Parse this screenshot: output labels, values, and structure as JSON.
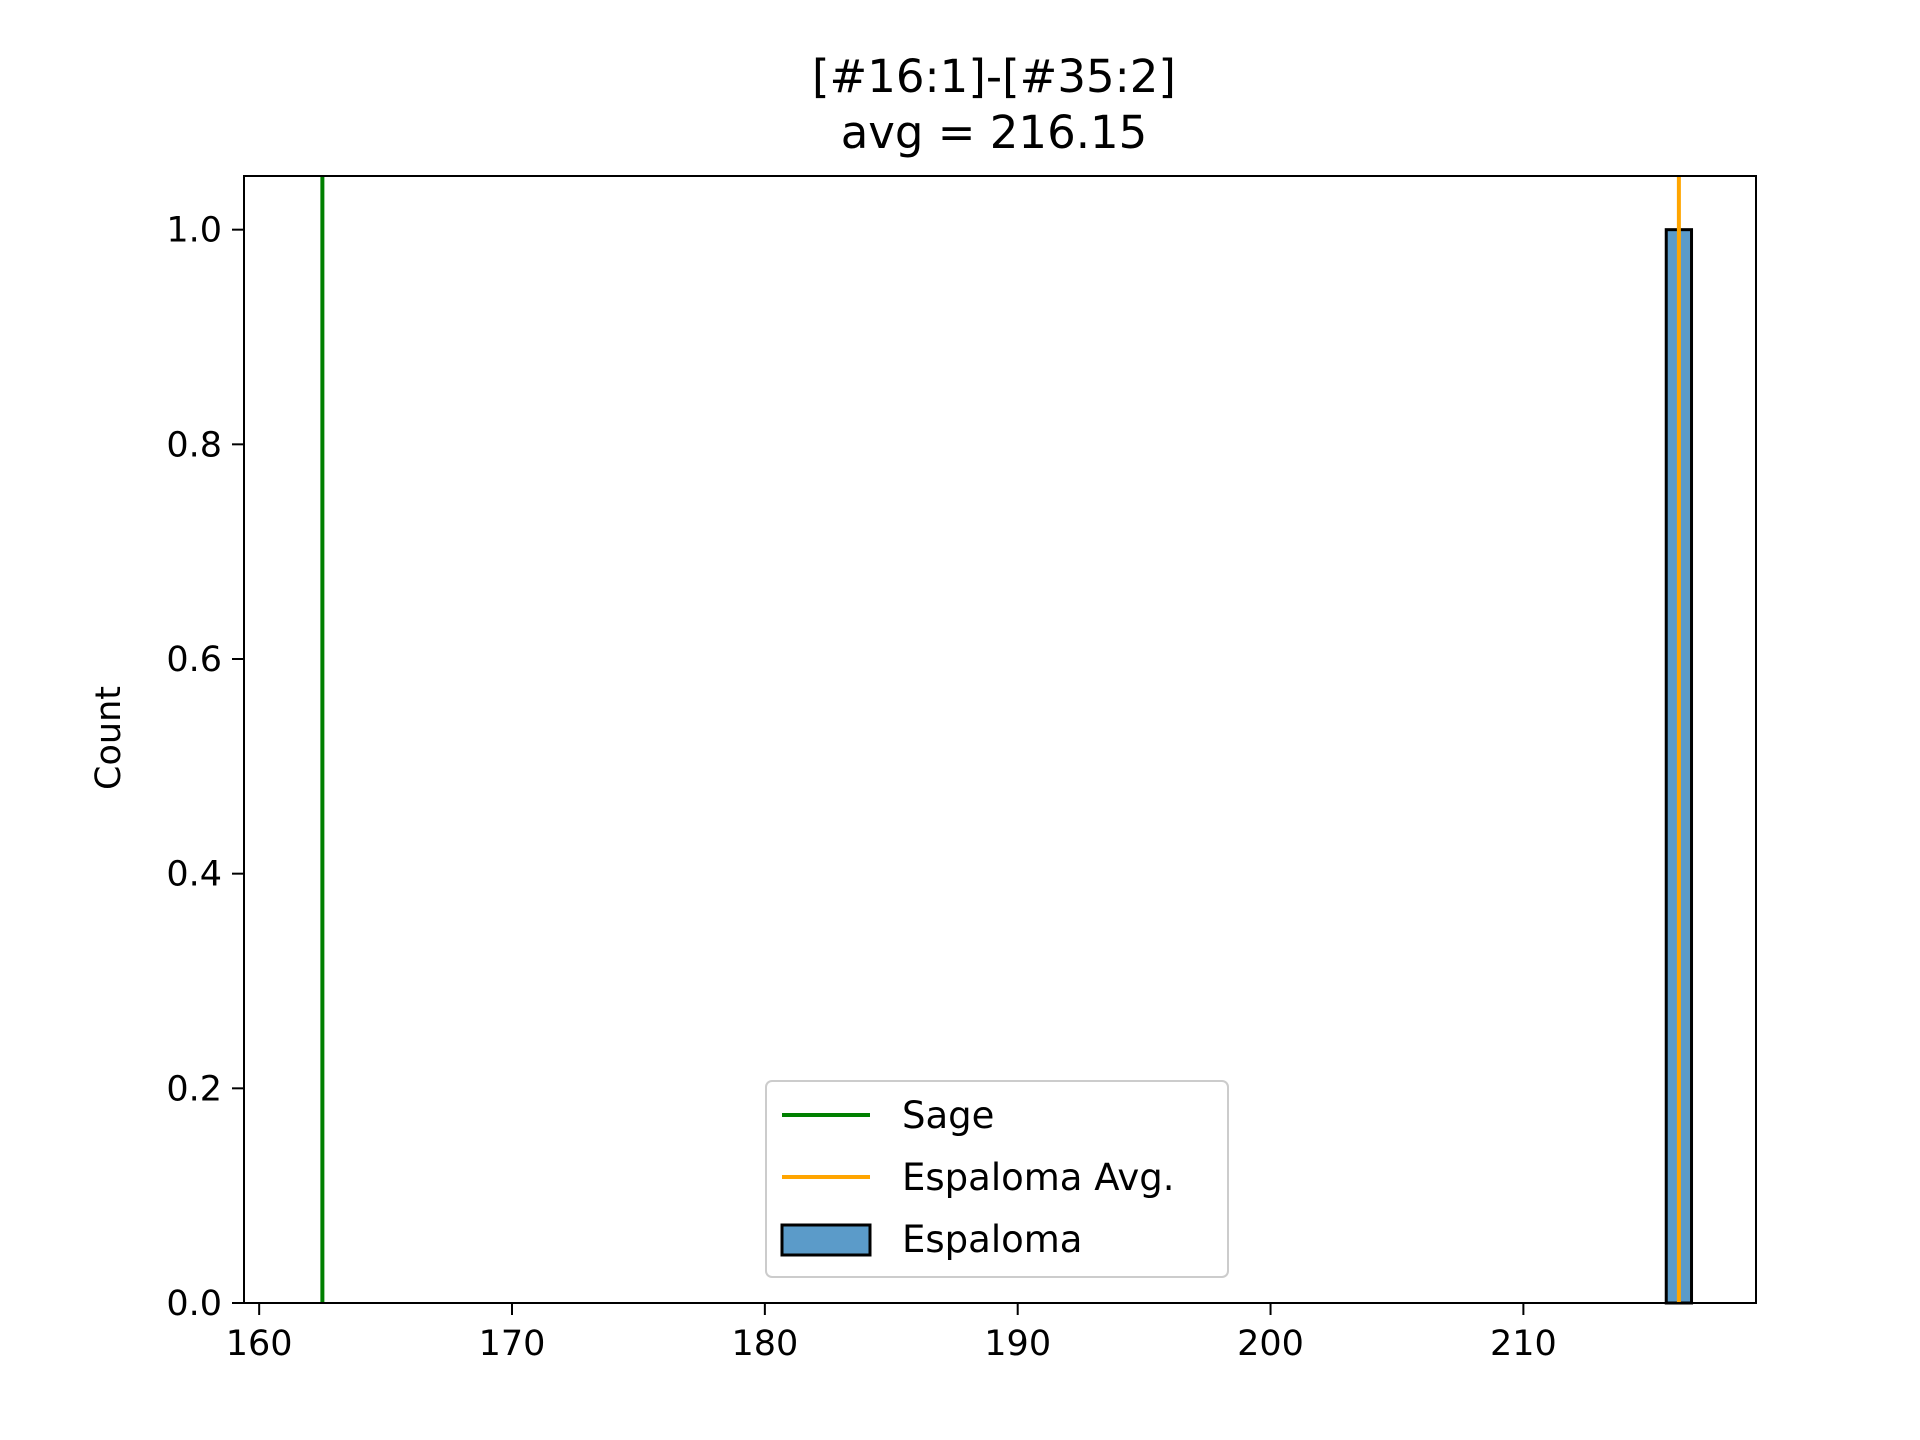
{
  "chart_data": {
    "type": "bar",
    "title": "[#16:1]-[#35:2]",
    "subtitle": "avg = 216.15",
    "xlabel": "",
    "ylabel": "Count",
    "xlim": [
      159.4,
      219.2
    ],
    "ylim": [
      0,
      1.05
    ],
    "xticks": [
      160,
      170,
      180,
      190,
      200,
      210
    ],
    "yticks": [
      0.0,
      0.2,
      0.4,
      0.6,
      0.8,
      1.0
    ],
    "ytick_labels": [
      "0.0",
      "0.2",
      "0.4",
      "0.6",
      "0.8",
      "1.0"
    ],
    "grid": false,
    "legend_position": "lower-center",
    "series": [
      {
        "name": "Espaloma",
        "kind": "histogram",
        "bins": [
          {
            "x0": 215.65,
            "x1": 216.65,
            "count": 1
          }
        ],
        "color": "#5b9bc9",
        "edge_color": "#000000"
      }
    ],
    "vlines": [
      {
        "name": "Sage",
        "x": 162.5,
        "color": "#008000"
      },
      {
        "name": "Espaloma Avg.",
        "x": 216.15,
        "color": "#ffa500"
      }
    ],
    "legend": [
      {
        "label": "Sage",
        "kind": "line",
        "color": "#008000"
      },
      {
        "label": "Espaloma Avg.",
        "kind": "line",
        "color": "#ffa500"
      },
      {
        "label": "Espaloma",
        "kind": "patch",
        "color": "#5b9bc9"
      }
    ]
  }
}
